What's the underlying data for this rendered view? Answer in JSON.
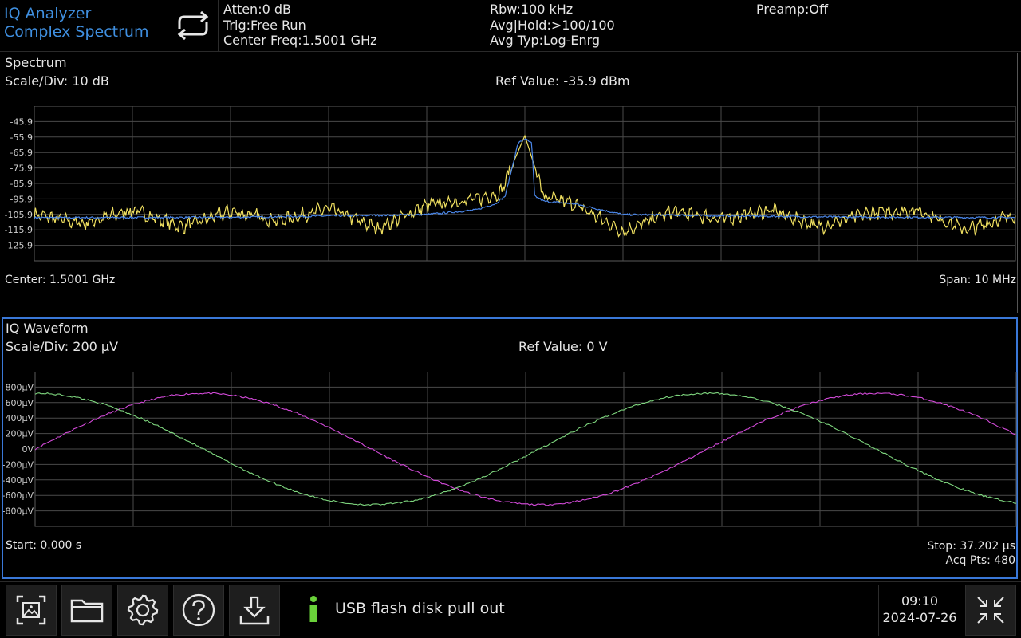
{
  "header": {
    "mode_line1": "IQ Analyzer",
    "mode_line2": "Complex Spectrum",
    "atten": "Atten:0 dB",
    "trig": "Trig:Free Run",
    "center_freq": "Center Freq:1.5001 GHz",
    "rbw": "Rbw:100 kHz",
    "avg_hold": "Avg|Hold:>100/100",
    "avg_type": "Avg Typ:Log-Enrg",
    "preamp": "Preamp:Off",
    "continuous_icon": "repeat-icon"
  },
  "spectrum": {
    "title": "Spectrum",
    "scale": "Scale/Div: 10 dB",
    "ref": "Ref Value: -35.9 dBm",
    "center": "Center: 1.5001 GHz",
    "span": "Span: 10 MHz",
    "trace_colors": {
      "live": "#f0e060",
      "average": "#4a86e8"
    },
    "chart_data": {
      "type": "line",
      "ylim": [
        -135.9,
        -35.9
      ],
      "yticks": [
        "-45.9",
        "-55.9",
        "-65.9",
        "-75.9",
        "-85.9",
        "-95.9",
        "-105.9",
        "-115.9",
        "-125.9"
      ],
      "xlim": [
        1.4951,
        1.5051
      ],
      "x_unit": "GHz",
      "grid": true,
      "series": [
        {
          "color": "#4a86e8",
          "x": [
            1.4951,
            1.4971,
            1.4991,
            1.4996,
            1.4998,
            1.4999,
            1.50003,
            1.5001,
            1.50017,
            1.5002,
            1.5003,
            1.5006,
            1.5011,
            1.5031,
            1.5051
          ],
          "y": [
            -108,
            -107.8,
            -106,
            -103,
            -99,
            -94,
            -60,
            -57,
            -60,
            -94,
            -97.5,
            -99,
            -106,
            -107.5,
            -108
          ]
        },
        {
          "color": "#f0e060",
          "x": [
            1.4951,
            1.4956,
            1.4961,
            1.4966,
            1.4971,
            1.4976,
            1.4981,
            1.4986,
            1.4991,
            1.4996,
            1.49985,
            1.5001,
            1.5003,
            1.5006,
            1.5011,
            1.5016,
            1.5021,
            1.5026,
            1.5031,
            1.5036,
            1.5041,
            1.5046,
            1.5051
          ],
          "y": [
            -106,
            -112,
            -103,
            -114,
            -104,
            -110,
            -102,
            -115,
            -100,
            -96,
            -92,
            -55,
            -95,
            -99,
            -117,
            -104,
            -109,
            -103,
            -114,
            -105,
            -103,
            -116,
            -106
          ]
        }
      ]
    }
  },
  "iq": {
    "title": "IQ Waveform",
    "scale": "Scale/Div: 200 μV",
    "ref": "Ref Value: 0 V",
    "start": "Start: 0.000 s",
    "stop": "Stop: 37.202 μs",
    "acq": "Acq Pts: 480",
    "chart_data": {
      "type": "line",
      "ylim": [
        -1000,
        1000
      ],
      "y_unit": "μV",
      "yticks": [
        "800μV",
        "600μV",
        "400μV",
        "200μV",
        "0V",
        "-200μV",
        "-400μV",
        "-600μV",
        "-800μV"
      ],
      "xlim": [
        0,
        37.202
      ],
      "x_unit": "μs",
      "grid": true,
      "series": [
        {
          "name": "",
          "color": "#d24ad8",
          "amplitude": 720,
          "period_us": 25.5,
          "phase_deg": 0
        },
        {
          "name": "",
          "color": "#7ed67e",
          "amplitude": 720,
          "period_us": 25.5,
          "phase_deg": 90
        }
      ]
    }
  },
  "toolbar": {
    "buttons": [
      "screenshot-icon",
      "folder-icon",
      "gear-icon",
      "help-icon",
      "download-icon"
    ],
    "message": "USB flash disk pull out",
    "time": "09:10",
    "date": "2024-07-26",
    "fullscreen_icon": "collapse-arrows-icon"
  }
}
